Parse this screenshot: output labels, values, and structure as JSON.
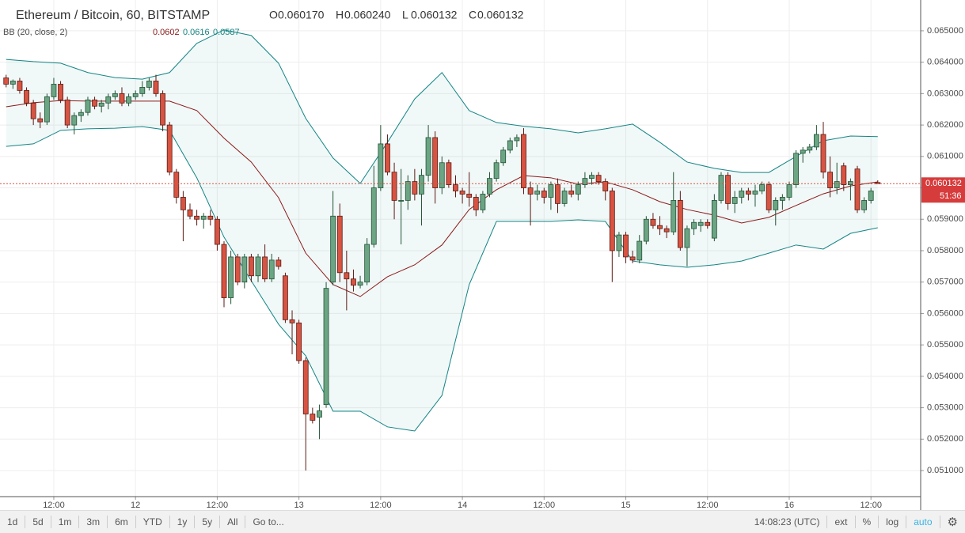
{
  "chart_data": {
    "type": "candlestick",
    "title": "Ethereum / Bitcoin, 60, BITSTAMP",
    "header_ohlc_keys": [
      "O",
      "H",
      "L",
      "C"
    ],
    "header_ohlc": [
      {
        "value": 0.06017,
        "label": "0.060170"
      },
      {
        "value": 0.06024,
        "label": "0.060240"
      },
      {
        "value": 0.060132,
        "label": "0.060132"
      },
      {
        "value": 0.060132,
        "label": "0.060132"
      }
    ],
    "indicator": {
      "label": "BB (20, close, 2)",
      "values": [
        0.0602,
        0.0616,
        0.0587
      ],
      "colors": [
        "#8b1a1a",
        "#138484",
        "#138484"
      ]
    },
    "last_price": 0.060132,
    "countdown": "51:36",
    "up_color": "#6ba583",
    "down_color": "#d75442",
    "up_border": "#225437",
    "down_border": "#5b1a13",
    "x": [
      5,
      6,
      7,
      8,
      9,
      10,
      11,
      12,
      13,
      14,
      15,
      16,
      17,
      18,
      19,
      20,
      21,
      22,
      23,
      24,
      25,
      26,
      27,
      28,
      29,
      30,
      31,
      32,
      33,
      34,
      35,
      36,
      37,
      38,
      39,
      40,
      41,
      42,
      43,
      44,
      45,
      46,
      47,
      48,
      49,
      50,
      51,
      52,
      53,
      54,
      55,
      56,
      57,
      58,
      59,
      60,
      61,
      62,
      63,
      64,
      65,
      66,
      67,
      68,
      69,
      70,
      71,
      72,
      73,
      74,
      75,
      76,
      77,
      78,
      79,
      80,
      81,
      82,
      83,
      84,
      85,
      86,
      87,
      88,
      89,
      90,
      91,
      92,
      93,
      94,
      95,
      96,
      97,
      98,
      99,
      100,
      101,
      102,
      103,
      104,
      105,
      106,
      107,
      108,
      109,
      110,
      111,
      112,
      113,
      114,
      115,
      116,
      117,
      118,
      119,
      120,
      121,
      122,
      123,
      124,
      125,
      126,
      127,
      128,
      129,
      130,
      131,
      132,
      133
    ],
    "candles": [
      [
        0.0635,
        0.0636,
        0.0632,
        0.0633
      ],
      [
        0.0633,
        0.06345,
        0.06315,
        0.0634
      ],
      [
        0.0634,
        0.0635,
        0.063,
        0.0631
      ],
      [
        0.0631,
        0.0632,
        0.0626,
        0.0627
      ],
      [
        0.0627,
        0.0628,
        0.062,
        0.0622
      ],
      [
        0.0622,
        0.0624,
        0.0619,
        0.0621
      ],
      [
        0.0621,
        0.063,
        0.062,
        0.0629
      ],
      [
        0.0629,
        0.0635,
        0.0628,
        0.0633
      ],
      [
        0.0633,
        0.0634,
        0.0627,
        0.0628
      ],
      [
        0.0628,
        0.0629,
        0.0619,
        0.062
      ],
      [
        0.062,
        0.0624,
        0.0617,
        0.0623
      ],
      [
        0.0623,
        0.0625,
        0.0621,
        0.0624
      ],
      [
        0.0624,
        0.0629,
        0.0623,
        0.0628
      ],
      [
        0.0628,
        0.0629,
        0.0625,
        0.0626
      ],
      [
        0.0626,
        0.0628,
        0.0624,
        0.0627
      ],
      [
        0.0627,
        0.063,
        0.0625,
        0.0629
      ],
      [
        0.0629,
        0.0631,
        0.0628,
        0.063
      ],
      [
        0.063,
        0.0632,
        0.0626,
        0.0627
      ],
      [
        0.0627,
        0.063,
        0.0626,
        0.0629
      ],
      [
        0.0629,
        0.0631,
        0.0628,
        0.063
      ],
      [
        0.063,
        0.0634,
        0.0629,
        0.0632
      ],
      [
        0.0632,
        0.0635,
        0.0631,
        0.0634
      ],
      [
        0.0634,
        0.0636,
        0.0629,
        0.063
      ],
      [
        0.063,
        0.0631,
        0.0618,
        0.062
      ],
      [
        0.062,
        0.0621,
        0.0604,
        0.0605
      ],
      [
        0.0605,
        0.0606,
        0.0595,
        0.0597
      ],
      [
        0.0597,
        0.0599,
        0.0583,
        0.0593
      ],
      [
        0.0593,
        0.0595,
        0.059,
        0.0591
      ],
      [
        0.0591,
        0.0593,
        0.0588,
        0.059
      ],
      [
        0.059,
        0.0592,
        0.0587,
        0.0591
      ],
      [
        0.0591,
        0.0593,
        0.0588,
        0.059
      ],
      [
        0.059,
        0.0591,
        0.058,
        0.0582
      ],
      [
        0.0582,
        0.0583,
        0.0562,
        0.0565
      ],
      [
        0.0565,
        0.058,
        0.0563,
        0.0578
      ],
      [
        0.0578,
        0.0579,
        0.0569,
        0.057
      ],
      [
        0.057,
        0.0579,
        0.0568,
        0.0578
      ],
      [
        0.0578,
        0.0579,
        0.057,
        0.0572
      ],
      [
        0.0572,
        0.0579,
        0.057,
        0.0578
      ],
      [
        0.0578,
        0.0582,
        0.057,
        0.0571
      ],
      [
        0.0571,
        0.0579,
        0.057,
        0.0577
      ],
      [
        0.0577,
        0.0578,
        0.0574,
        0.0575
      ],
      [
        0.0572,
        0.0573,
        0.0557,
        0.0558
      ],
      [
        0.0558,
        0.0561,
        0.0547,
        0.0557
      ],
      [
        0.0557,
        0.0558,
        0.0544,
        0.0545
      ],
      [
        0.0545,
        0.0546,
        0.051,
        0.0528
      ],
      [
        0.0528,
        0.053,
        0.0525,
        0.0526
      ],
      [
        0.0527,
        0.0531,
        0.052,
        0.0529
      ],
      [
        0.0531,
        0.057,
        0.053,
        0.0568
      ],
      [
        0.057,
        0.0599,
        0.0569,
        0.0591
      ],
      [
        0.0591,
        0.0595,
        0.057,
        0.0573
      ],
      [
        0.0573,
        0.058,
        0.0561,
        0.0571
      ],
      [
        0.0571,
        0.0574,
        0.0567,
        0.0569
      ],
      [
        0.0569,
        0.0572,
        0.0568,
        0.057
      ],
      [
        0.057,
        0.0584,
        0.0569,
        0.0582
      ],
      [
        0.0582,
        0.0607,
        0.0581,
        0.06
      ],
      [
        0.06,
        0.062,
        0.0599,
        0.0614
      ],
      [
        0.0614,
        0.0617,
        0.0604,
        0.0605
      ],
      [
        0.0605,
        0.0608,
        0.059,
        0.0596
      ],
      [
        0.0596,
        0.0606,
        0.0582,
        0.0596
      ],
      [
        0.0596,
        0.0604,
        0.0593,
        0.0602
      ],
      [
        0.0602,
        0.0606,
        0.0596,
        0.0598
      ],
      [
        0.0598,
        0.0606,
        0.0588,
        0.0604
      ],
      [
        0.0604,
        0.062,
        0.0602,
        0.0616
      ],
      [
        0.0616,
        0.0618,
        0.0595,
        0.06
      ],
      [
        0.06,
        0.061,
        0.0598,
        0.0608
      ],
      [
        0.0608,
        0.0609,
        0.06,
        0.0601
      ],
      [
        0.0601,
        0.0604,
        0.0597,
        0.0599
      ],
      [
        0.0599,
        0.06,
        0.0595,
        0.0598
      ],
      [
        0.0598,
        0.0605,
        0.0594,
        0.0597
      ],
      [
        0.0597,
        0.0598,
        0.0591,
        0.0593
      ],
      [
        0.0593,
        0.0599,
        0.0592,
        0.0598
      ],
      [
        0.0598,
        0.0605,
        0.0597,
        0.0603
      ],
      [
        0.0603,
        0.0609,
        0.0602,
        0.0608
      ],
      [
        0.0608,
        0.0613,
        0.0607,
        0.0612
      ],
      [
        0.0612,
        0.0616,
        0.0611,
        0.0615
      ],
      [
        0.0615,
        0.0617,
        0.0613,
        0.0616
      ],
      [
        0.0617,
        0.0619,
        0.0598,
        0.06
      ],
      [
        0.06,
        0.0602,
        0.0588,
        0.0598
      ],
      [
        0.0598,
        0.0601,
        0.0596,
        0.0599
      ],
      [
        0.0599,
        0.06,
        0.0595,
        0.0597
      ],
      [
        0.0597,
        0.0602,
        0.0593,
        0.0601
      ],
      [
        0.0601,
        0.0603,
        0.0592,
        0.0595
      ],
      [
        0.0595,
        0.06,
        0.0594,
        0.0599
      ],
      [
        0.0599,
        0.0601,
        0.0597,
        0.0598
      ],
      [
        0.0598,
        0.0602,
        0.0596,
        0.0601
      ],
      [
        0.0601,
        0.0605,
        0.06,
        0.0603
      ],
      [
        0.0603,
        0.0605,
        0.0601,
        0.0604
      ],
      [
        0.0604,
        0.0605,
        0.0601,
        0.0602
      ],
      [
        0.0602,
        0.0603,
        0.0596,
        0.0599
      ],
      [
        0.0599,
        0.06,
        0.057,
        0.058
      ],
      [
        0.058,
        0.0586,
        0.0578,
        0.0585
      ],
      [
        0.0585,
        0.0586,
        0.0576,
        0.0578
      ],
      [
        0.0578,
        0.058,
        0.0576,
        0.0577
      ],
      [
        0.0577,
        0.0585,
        0.0576,
        0.0583
      ],
      [
        0.0583,
        0.0591,
        0.0582,
        0.059
      ],
      [
        0.059,
        0.0592,
        0.0587,
        0.0588
      ],
      [
        0.0588,
        0.0591,
        0.0585,
        0.0587
      ],
      [
        0.0587,
        0.0588,
        0.0584,
        0.0586
      ],
      [
        0.0586,
        0.0605,
        0.0585,
        0.0596
      ],
      [
        0.0596,
        0.0599,
        0.058,
        0.0581
      ],
      [
        0.0581,
        0.0588,
        0.0575,
        0.0587
      ],
      [
        0.0587,
        0.059,
        0.0585,
        0.0589
      ],
      [
        0.0588,
        0.059,
        0.0586,
        0.0589
      ],
      [
        0.0589,
        0.059,
        0.0587,
        0.0588
      ],
      [
        0.0584,
        0.0598,
        0.0583,
        0.0596
      ],
      [
        0.0596,
        0.0605,
        0.0595,
        0.0604
      ],
      [
        0.0604,
        0.0605,
        0.0593,
        0.0595
      ],
      [
        0.0595,
        0.0599,
        0.0592,
        0.0597
      ],
      [
        0.0597,
        0.06,
        0.0595,
        0.0599
      ],
      [
        0.0599,
        0.06,
        0.0596,
        0.0598
      ],
      [
        0.0598,
        0.0601,
        0.0594,
        0.0599
      ],
      [
        0.0599,
        0.0602,
        0.0598,
        0.0601
      ],
      [
        0.0601,
        0.0602,
        0.0592,
        0.0593
      ],
      [
        0.0593,
        0.0597,
        0.0588,
        0.0596
      ],
      [
        0.0596,
        0.0598,
        0.0593,
        0.0597
      ],
      [
        0.0597,
        0.0602,
        0.0596,
        0.0601
      ],
      [
        0.0601,
        0.0612,
        0.06,
        0.0611
      ],
      [
        0.0611,
        0.0613,
        0.0608,
        0.0612
      ],
      [
        0.0612,
        0.0614,
        0.0611,
        0.0613
      ],
      [
        0.0613,
        0.062,
        0.0612,
        0.0617
      ],
      [
        0.0617,
        0.0621,
        0.0603,
        0.0605
      ],
      [
        0.0605,
        0.061,
        0.0597,
        0.06
      ],
      [
        0.06,
        0.0608,
        0.0598,
        0.0602
      ],
      [
        0.0607,
        0.0608,
        0.0599,
        0.0601
      ],
      [
        0.0601,
        0.0603,
        0.0596,
        0.0602
      ],
      [
        0.0606,
        0.0607,
        0.0592,
        0.0593
      ],
      [
        0.0593,
        0.0597,
        0.0592,
        0.0596
      ],
      [
        0.0596,
        0.06,
        0.0595,
        0.0599
      ],
      [
        0.06017,
        0.06024,
        0.060132,
        0.060132
      ]
    ],
    "bands": {
      "x": [
        5,
        9,
        13,
        17,
        21,
        25,
        29,
        33,
        37,
        41,
        45,
        49,
        53,
        57,
        61,
        65,
        69,
        73,
        77,
        81,
        85,
        89,
        93,
        97,
        101,
        105,
        109,
        113,
        117,
        121,
        125,
        129,
        133
      ],
      "upper": [
        0.06409,
        0.06402,
        0.06397,
        0.06367,
        0.06351,
        0.06346,
        0.06367,
        0.0646,
        0.06503,
        0.06485,
        0.06397,
        0.06221,
        0.06095,
        0.06014,
        0.06145,
        0.06283,
        0.06367,
        0.06246,
        0.06208,
        0.06196,
        0.06188,
        0.06175,
        0.06188,
        0.06203,
        0.06145,
        0.06082,
        0.06062,
        0.06049,
        0.06049,
        0.061,
        0.0615,
        0.06165,
        0.06163
      ],
      "middle": [
        0.06258,
        0.06271,
        0.06278,
        0.06276,
        0.06276,
        0.06276,
        0.06276,
        0.06246,
        0.06158,
        0.06082,
        0.05969,
        0.05792,
        0.05692,
        0.05654,
        0.05717,
        0.05755,
        0.05818,
        0.05931,
        0.05994,
        0.06039,
        0.06032,
        0.06012,
        0.06019,
        0.05994,
        0.05956,
        0.05931,
        0.05913,
        0.05888,
        0.05906,
        0.05944,
        0.05981,
        0.06006,
        0.06019
      ],
      "lower": [
        0.06132,
        0.0614,
        0.06183,
        0.06188,
        0.0619,
        0.06195,
        0.06183,
        0.06032,
        0.05843,
        0.05704,
        0.05566,
        0.05465,
        0.05289,
        0.05289,
        0.05239,
        0.05226,
        0.05339,
        0.05692,
        0.05893,
        0.05893,
        0.05893,
        0.05898,
        0.05893,
        0.05767,
        0.05755,
        0.05747,
        0.05755,
        0.05767,
        0.05792,
        0.05818,
        0.05805,
        0.05855,
        0.05873
      ]
    },
    "xlim": [
      4.1,
      139.3
    ],
    "ylim": [
      0.05017,
      0.06598
    ],
    "xticks": [
      {
        "value": 12,
        "label": "12:00"
      },
      {
        "value": 24,
        "label": "12"
      },
      {
        "value": 36,
        "label": "12:00"
      },
      {
        "value": 48,
        "label": "13"
      },
      {
        "value": 60,
        "label": "12:00"
      },
      {
        "value": 72,
        "label": "14"
      },
      {
        "value": 84,
        "label": "12:00"
      },
      {
        "value": 96,
        "label": "15"
      },
      {
        "value": 108,
        "label": "12:00"
      },
      {
        "value": 120,
        "label": "16"
      },
      {
        "value": 132,
        "label": "12:00"
      }
    ],
    "yticks": [
      {
        "value": 0.051,
        "label": "0.051000"
      },
      {
        "value": 0.052,
        "label": "0.052000"
      },
      {
        "value": 0.053,
        "label": "0.053000"
      },
      {
        "value": 0.054,
        "label": "0.054000"
      },
      {
        "value": 0.055,
        "label": "0.055000"
      },
      {
        "value": 0.056,
        "label": "0.056000"
      },
      {
        "value": 0.057,
        "label": "0.057000"
      },
      {
        "value": 0.058,
        "label": "0.058000"
      },
      {
        "value": 0.059,
        "label": "0.059000"
      },
      {
        "value": 0.06,
        "label": "0.060000"
      },
      {
        "value": 0.061,
        "label": "0.061000"
      },
      {
        "value": 0.062,
        "label": "0.062000"
      },
      {
        "value": 0.063,
        "label": "0.063000"
      },
      {
        "value": 0.064,
        "label": "0.064000"
      },
      {
        "value": 0.065,
        "label": "0.065000"
      }
    ],
    "grid": true
  },
  "toolbar": {
    "ranges": [
      "1d",
      "5d",
      "1m",
      "3m",
      "6m",
      "YTD",
      "1y",
      "5y",
      "All"
    ],
    "goto": "Go to...",
    "time": "14:08:23 (UTC)",
    "options": [
      "ext",
      "%",
      "log",
      "auto"
    ]
  }
}
